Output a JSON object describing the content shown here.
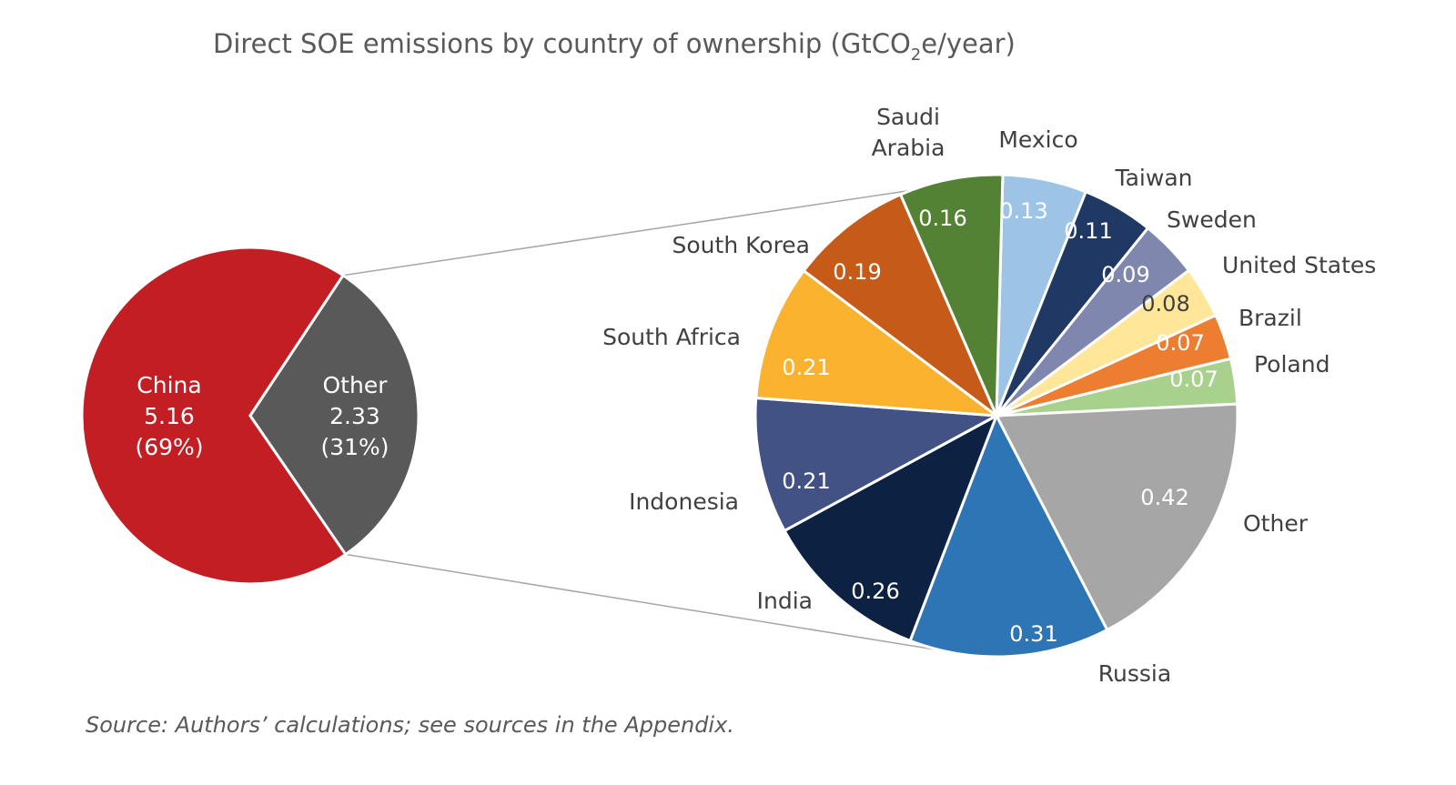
{
  "chart_data": [
    {
      "type": "pie",
      "title": "Direct SOE emissions by country of ownership (GtCO",
      "title_subscript": "2",
      "title_suffix": "e/year)",
      "slices": [
        {
          "name": "China",
          "value": 5.16,
          "value_label": "5.16",
          "pct_label": "(69%)",
          "color": "#C41E25"
        },
        {
          "name": "Other",
          "value": 2.33,
          "value_label": "2.33",
          "pct_label": "(31%)",
          "color": "#595959"
        }
      ]
    },
    {
      "type": "pie",
      "breakdown_of": "Other",
      "slices": [
        {
          "name": "Mexico",
          "label_lines": [
            "Mexico"
          ],
          "value": 0.13,
          "value_label": "0.13",
          "color": "#9DC3E6",
          "text_color": "#ffffff"
        },
        {
          "name": "Taiwan",
          "label_lines": [
            "Taiwan"
          ],
          "value": 0.11,
          "value_label": "0.11",
          "color": "#1F3864",
          "text_color": "#ffffff"
        },
        {
          "name": "Sweden",
          "label_lines": [
            "Sweden"
          ],
          "value": 0.09,
          "value_label": "0.09",
          "color": "#8087AE",
          "text_color": "#ffffff"
        },
        {
          "name": "United States",
          "label_lines": [
            "United States"
          ],
          "value": 0.08,
          "value_label": "0.08",
          "color": "#FFE699",
          "text_color": "#404040"
        },
        {
          "name": "Brazil",
          "label_lines": [
            "Brazil"
          ],
          "value": 0.07,
          "value_label": "0.07",
          "color": "#ED7D31",
          "text_color": "#ffffff"
        },
        {
          "name": "Poland",
          "label_lines": [
            "Poland"
          ],
          "value": 0.07,
          "value_label": "0.07",
          "color": "#A9D18E",
          "text_color": "#ffffff"
        },
        {
          "name": "Other",
          "label_lines": [
            "Other"
          ],
          "value": 0.42,
          "value_label": "0.42",
          "color": "#A6A6A6",
          "text_color": "#ffffff"
        },
        {
          "name": "Russia",
          "label_lines": [
            "Russia"
          ],
          "value": 0.31,
          "value_label": "0.31",
          "color": "#2E75B6",
          "text_color": "#ffffff"
        },
        {
          "name": "India",
          "label_lines": [
            "India"
          ],
          "value": 0.26,
          "value_label": "0.26",
          "color": "#0D2142",
          "text_color": "#ffffff"
        },
        {
          "name": "Indonesia",
          "label_lines": [
            "Indonesia"
          ],
          "value": 0.21,
          "value_label": "0.21",
          "color": "#435284",
          "text_color": "#ffffff"
        },
        {
          "name": "South Africa",
          "label_lines": [
            "South Africa"
          ],
          "value": 0.21,
          "value_label": "0.21",
          "color": "#FBB22E",
          "text_color": "#ffffff"
        },
        {
          "name": "South Korea",
          "label_lines": [
            "South Korea"
          ],
          "value": 0.19,
          "value_label": "0.19",
          "color": "#C55A19",
          "text_color": "#ffffff"
        },
        {
          "name": "Saudi Arabia",
          "label_lines": [
            "Saudi",
            "Arabia"
          ],
          "value": 0.16,
          "value_label": "0.16",
          "color": "#548235",
          "text_color": "#ffffff"
        }
      ]
    }
  ],
  "source": "Source: Authors’ calculations; see sources in the Appendix."
}
